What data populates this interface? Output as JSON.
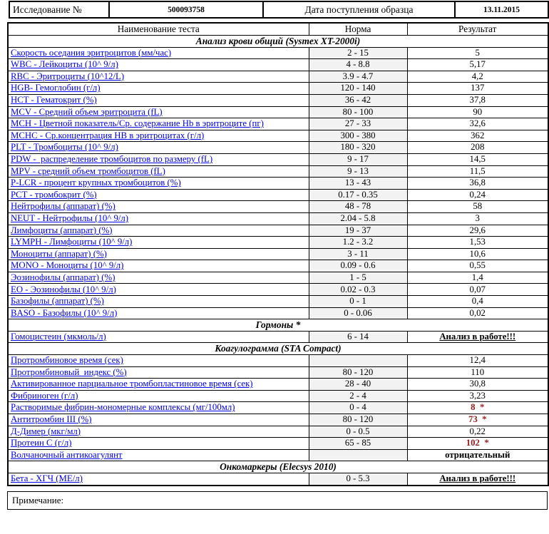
{
  "colors": {
    "link_blue": "#0000EE",
    "abnormal_red": "#9B1B1B",
    "norm_bg": "#F2F2F2",
    "border": "#000000"
  },
  "header": {
    "study_label": "Исследование №",
    "study_number": "500093758",
    "date_label": "Дата поступления образца",
    "date_value": "13.11.2015"
  },
  "columns": [
    "Наименование теста",
    "Норма",
    "Результат"
  ],
  "sections": [
    {
      "title": "Анализ крови общий (Sysmex XT-2000i)",
      "rows": [
        {
          "name": "Скорость оседания эритроцитов (мм/час)",
          "norm": "2 - 15",
          "result": "5",
          "style": "normal"
        },
        {
          "name": "WBC - Лейкоциты (10^ 9/л)",
          "norm": "4 - 8.8",
          "result": "5,17",
          "style": "normal"
        },
        {
          "name": "RBC - Эритроциты (10^12/L)",
          "norm": "3.9 - 4.7",
          "result": "4,2",
          "style": "normal"
        },
        {
          "name": "HGB- Гемоглобин (г/л)",
          "norm": "120 - 140",
          "result": "137",
          "style": "normal"
        },
        {
          "name": "HCT - Гематокрит (%)",
          "norm": "36 - 42",
          "result": "37,8",
          "style": "normal"
        },
        {
          "name": "MCV - Средний объем эритроцита (fL)",
          "norm": "80 - 100",
          "result": "90",
          "style": "normal"
        },
        {
          "name": "MCH - Цветной показатель/Ср. содержание Hb в эритроците (пг)",
          "norm": "27 - 33",
          "result": "32,6",
          "style": "normal"
        },
        {
          "name": "MCHC - Ср.концентрация HB в эритроцитах (г/л)",
          "norm": "300 - 380",
          "result": "362",
          "style": "normal"
        },
        {
          "name": "PLT - Тромбоциты (10^ 9/л)",
          "norm": "180 - 320",
          "result": "208",
          "style": "normal"
        },
        {
          "name": "PDW -  распределение тромбоцитов по размеру (fL)",
          "norm": "9 - 17",
          "result": "14,5",
          "style": "normal"
        },
        {
          "name": "MPV - средний объем тромбоцитов (fL)",
          "norm": "9 - 13",
          "result": "11,5",
          "style": "normal"
        },
        {
          "name": "P-LCR - процент крупных тромбоцитов (%)",
          "norm": "13 - 43",
          "result": "36,8",
          "style": "normal"
        },
        {
          "name": "PCT - тромбокрит (%)",
          "norm": "0.17 - 0.35",
          "result": "0,24",
          "style": "normal"
        },
        {
          "name": "Нейтрофилы (аппарат) (%)",
          "norm": "48 - 78",
          "result": "58",
          "style": "normal"
        },
        {
          "name": "NEUT - Нейтрофилы (10^ 9/л)",
          "norm": "2.04 - 5.8",
          "result": "3",
          "style": "normal"
        },
        {
          "name": "Лимфоциты (аппарат) (%)",
          "norm": "19 - 37",
          "result": "29,6",
          "style": "normal"
        },
        {
          "name": "LYMPH - Лимфоциты (10^ 9/л)",
          "norm": "1.2 - 3.2",
          "result": "1,53",
          "style": "normal"
        },
        {
          "name": "Моноциты (аппарат) (%)",
          "norm": "3 - 11",
          "result": "10,6",
          "style": "normal"
        },
        {
          "name": "MONO - Моноциты (10^ 9/л)",
          "norm": "0.09 - 0.6",
          "result": "0,55",
          "style": "normal"
        },
        {
          "name": "Эозинофилы (аппарат) (%)",
          "norm": "1 - 5",
          "result": "1,4",
          "style": "normal"
        },
        {
          "name": "EO - Эозинофилы (10^ 9/л)",
          "norm": "0.02 - 0.3",
          "result": "0,07",
          "style": "normal"
        },
        {
          "name": "Базофилы (аппарат) (%)",
          "norm": "0 - 1",
          "result": "0,4",
          "style": "normal"
        },
        {
          "name": "BASO - Базофилы (10^ 9/л)",
          "norm": "0 - 0.06",
          "result": "0,02",
          "style": "normal"
        }
      ]
    },
    {
      "title": "Гормоны *",
      "rows": [
        {
          "name": "Гомоцистеин (мкмоль/л)",
          "norm": "6 - 14",
          "result": "Анализ в работе!!!",
          "style": "pending"
        }
      ]
    },
    {
      "title": "Коагулограмма (STA Compact)",
      "rows": [
        {
          "name": "Протромбиновое время (сек)",
          "norm": "",
          "result": "12,4",
          "style": "normal"
        },
        {
          "name": "Протромбиновый  индекс (%)",
          "norm": "80 - 120",
          "result": "110",
          "style": "normal"
        },
        {
          "name": "Активированное парциальное тромбопластиновое время (сек)",
          "norm": "28 - 40",
          "result": "30,8",
          "style": "normal"
        },
        {
          "name": "Фибриноген (г/л)",
          "norm": "2 - 4",
          "result": "3,23",
          "style": "normal"
        },
        {
          "name": "Растворимые фибрин-мономерные комплексы (мг/100мл)",
          "norm": "0 - 4",
          "result": "8  *",
          "style": "abnormal"
        },
        {
          "name": "Антитромбин III (%)",
          "norm": "80 - 120",
          "result": "73  *",
          "style": "abnormal"
        },
        {
          "name": "Д-Димер (мкг/мл)",
          "norm": "0 - 0.5",
          "result": "0,22",
          "style": "normal"
        },
        {
          "name": "Протеин C (г/л)",
          "norm": "65 - 85",
          "result": "102  *",
          "style": "abnormal"
        },
        {
          "name": "Волчаночный антикоагулянт",
          "norm": "",
          "result": "отрицательный",
          "style": "bold"
        }
      ]
    },
    {
      "title": "Онкомаркеры (Elecsys 2010)",
      "rows": [
        {
          "name": "Бета - ХГЧ (МЕ/л)",
          "norm": "0 - 5.3",
          "result": "Анализ в работе!!!",
          "style": "pending"
        }
      ]
    }
  ],
  "footer": {
    "note_label": "Примечание:"
  }
}
